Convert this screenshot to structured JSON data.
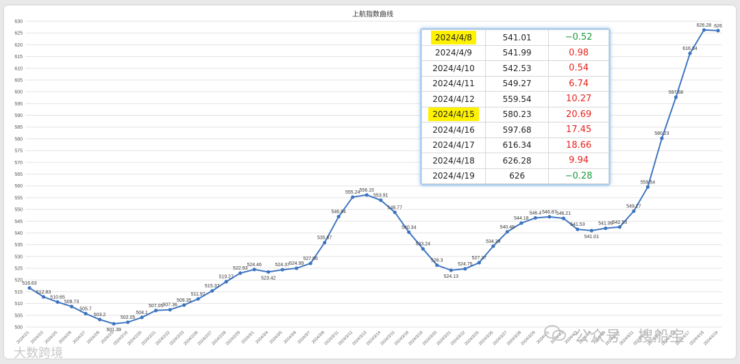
{
  "chart_data": {
    "type": "line",
    "title": "上航指数曲线",
    "ylim": [
      500,
      630
    ],
    "ytick_step": 5,
    "grid": true,
    "line_color": "#3d74c0",
    "x": [
      "2024/2/1",
      "2024/2/2",
      "2024/2/5",
      "2024/2/6",
      "2024/2/7",
      "2024/2/8",
      "2024/2/9",
      "2024/2/19",
      "2024/2/20",
      "2024/2/21",
      "2024/2/22",
      "2024/2/23",
      "2024/2/26",
      "2024/2/27",
      "2024/2/28",
      "2024/2/29",
      "2024/3/1",
      "2024/3/4",
      "2024/3/5",
      "2024/3/6",
      "2024/3/7",
      "2024/3/8",
      "2024/3/11",
      "2024/3/12",
      "2024/3/13",
      "2024/3/14",
      "2024/3/15",
      "2024/3/18",
      "2024/3/19",
      "2024/3/20",
      "2024/3/21",
      "2024/3/22",
      "2024/3/25",
      "2024/3/26",
      "2024/3/27",
      "2024/3/28",
      "2024/3/29",
      "2024/4/1",
      "2024/4/2",
      "2024/4/3",
      "2024/4/8",
      "2024/4/9",
      "2024/4/10",
      "2024/4/11",
      "2024/4/12",
      "2024/4/15",
      "2024/4/16",
      "2024/4/17",
      "2024/4/18",
      "2024/4/19"
    ],
    "values": [
      516.63,
      512.83,
      510.65,
      508.73,
      505.7,
      503.2,
      501.39,
      502.05,
      504.1,
      507.05,
      507.36,
      509.35,
      511.97,
      515.37,
      519.27,
      522.93,
      524.46,
      523.42,
      524.37,
      524.99,
      527.06,
      535.87,
      546.94,
      555.24,
      556.15,
      553.91,
      548.77,
      540.34,
      533.24,
      526.3,
      524.13,
      524.75,
      527.37,
      534.39,
      540.48,
      544.18,
      546.4,
      546.87,
      546.21,
      541.53,
      541.01,
      541.99,
      542.53,
      549.27,
      559.54,
      580.23,
      597.68,
      616.34,
      626.28,
      626
    ],
    "labels": [
      "516.63",
      "512.83",
      "510.65",
      "508.73",
      "505.7",
      "503.2",
      "501.39",
      "502.05",
      "504.1",
      "507.05",
      "507.36",
      "509.35",
      "511.97",
      "515.37",
      "519.27",
      "522.93",
      "524.46",
      "523.42",
      "524.37",
      "524.99",
      "527.06",
      "535.87",
      "546.94",
      "555.24",
      "556.15",
      "553.91",
      "548.77",
      "540.34",
      "533.24",
      "526.3",
      "524.13",
      "524.75",
      "527.37",
      "534.39",
      "540.48",
      "544.18",
      "546.4",
      "546.87",
      "546.21",
      "541.53",
      "541.01",
      "541.99",
      "542.53",
      "549.27",
      "559.54",
      "580.23",
      "597.68",
      "616.34",
      "626.28",
      "626"
    ]
  },
  "table": {
    "rows": [
      {
        "date": "2024/4/8",
        "value": "541.01",
        "change": "−0.52",
        "dir": "down",
        "highlight": true
      },
      {
        "date": "2024/4/9",
        "value": "541.99",
        "change": "0.98",
        "dir": "up",
        "highlight": false
      },
      {
        "date": "2024/4/10",
        "value": "542.53",
        "change": "0.54",
        "dir": "up",
        "highlight": false
      },
      {
        "date": "2024/4/11",
        "value": "549.27",
        "change": "6.74",
        "dir": "up",
        "highlight": false
      },
      {
        "date": "2024/4/12",
        "value": "559.54",
        "change": "10.27",
        "dir": "up",
        "highlight": false
      },
      {
        "date": "2024/4/15",
        "value": "580.23",
        "change": "20.69",
        "dir": "up",
        "highlight": true
      },
      {
        "date": "2024/4/16",
        "value": "597.68",
        "change": "17.45",
        "dir": "up",
        "highlight": false
      },
      {
        "date": "2024/4/17",
        "value": "616.34",
        "change": "18.66",
        "dir": "up",
        "highlight": false
      },
      {
        "date": "2024/4/18",
        "value": "626.28",
        "change": "9.94",
        "dir": "up",
        "highlight": false
      },
      {
        "date": "2024/4/19",
        "value": "626",
        "change": "−0.28",
        "dir": "down",
        "highlight": false
      }
    ],
    "up_color": "#e8211b",
    "down_color": "#1a9a3a"
  },
  "watermark": {
    "text": "公众号 · 搜船宝",
    "corner_text": "大数跨境"
  }
}
